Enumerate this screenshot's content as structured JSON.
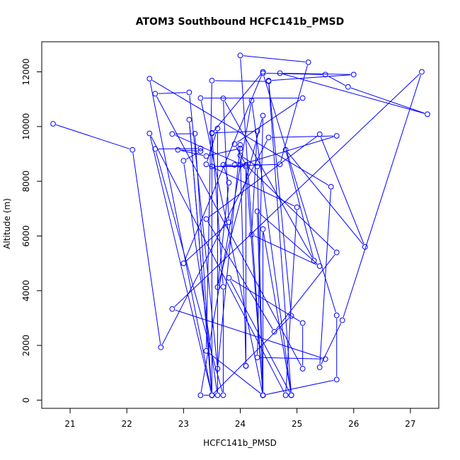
{
  "chart_data": {
    "type": "line",
    "title": "ATOM3 Southbound HCFC141b_PMSD",
    "xlabel": "HCFC141b_PMSD",
    "ylabel": "Altitude (m)",
    "xlim": [
      20.5,
      27.5
    ],
    "ylim": [
      -300,
      13100
    ],
    "xticks": [
      21,
      22,
      23,
      24,
      25,
      26,
      27
    ],
    "yticks": [
      0,
      2000,
      4000,
      6000,
      8000,
      10000,
      12000
    ],
    "grid": false,
    "legend": "none",
    "series": [
      {
        "values": [
          [
            20.7,
            10100
          ],
          [
            22.1,
            9150
          ],
          [
            22.6,
            1930
          ],
          [
            24.5,
            9600
          ],
          [
            25.7,
            9660
          ],
          [
            24.0,
            8600
          ],
          [
            23.9,
            8600
          ],
          [
            23.7,
            8600
          ],
          [
            23.8,
            7950
          ],
          [
            23.6,
            4130
          ],
          [
            24.4,
            10400
          ],
          [
            24.3,
            1560
          ],
          [
            25.5,
            1500
          ],
          [
            22.8,
            3330
          ],
          [
            27.2,
            12000
          ],
          [
            25.8,
            2920
          ],
          [
            25.4,
            1200
          ],
          [
            25.6,
            7800
          ],
          [
            22.4,
            11750
          ],
          [
            23.5,
            180
          ],
          [
            23.1,
            10250
          ],
          [
            23.5,
            180
          ],
          [
            23.3,
            180
          ],
          [
            24.2,
            10950
          ],
          [
            24.9,
            180
          ],
          [
            24.4,
            6250
          ],
          [
            24.4,
            180
          ],
          [
            24.3,
            6900
          ],
          [
            25.4,
            4900
          ],
          [
            24.2,
            6050
          ],
          [
            24.3,
            9830
          ],
          [
            23.5,
            9770
          ],
          [
            23.5,
            180
          ],
          [
            24.9,
            3080
          ],
          [
            24.5,
            11680
          ],
          [
            26.0,
            11900
          ],
          [
            24.7,
            11950
          ],
          [
            27.3,
            10450
          ],
          [
            25.9,
            11450
          ],
          [
            25.5,
            11900
          ],
          [
            24.4,
            11950
          ],
          [
            25.7,
            3100
          ],
          [
            25.7,
            750
          ],
          [
            24.4,
            180
          ],
          [
            23.4,
            1800
          ],
          [
            23.5,
            11680
          ],
          [
            24.5,
            11650
          ],
          [
            24.9,
            180
          ],
          [
            23.8,
            4470
          ],
          [
            25.1,
            2820
          ],
          [
            25.1,
            1150
          ],
          [
            22.5,
            11200
          ],
          [
            23.1,
            11250
          ],
          [
            23.6,
            1150
          ],
          [
            24.0,
            9330
          ],
          [
            24.0,
            9200
          ],
          [
            23.4,
            8920
          ],
          [
            22.9,
            9150
          ],
          [
            23.3,
            9100
          ],
          [
            23.0,
            8750
          ],
          [
            23.6,
            180
          ],
          [
            23.6,
            9930
          ],
          [
            23.4,
            8620
          ],
          [
            25.0,
            7050
          ],
          [
            24.8,
            180
          ],
          [
            22.4,
            9750
          ],
          [
            23.5,
            180
          ],
          [
            23.2,
            9740
          ],
          [
            22.8,
            9730
          ],
          [
            24.1,
            8540
          ],
          [
            24.1,
            1250
          ],
          [
            24.1,
            1250
          ],
          [
            24.0,
            8950
          ],
          [
            24.3,
            8540
          ],
          [
            24.4,
            180
          ],
          [
            24.0,
            12600
          ],
          [
            25.2,
            12350
          ],
          [
            24.7,
            8620
          ],
          [
            23.5,
            8540
          ],
          [
            24.1,
            8540
          ],
          [
            24.4,
            180
          ],
          [
            23.3,
            11040
          ],
          [
            25.1,
            11040
          ],
          [
            23.9,
            9360
          ],
          [
            24.1,
            8600
          ],
          [
            25.7,
            5400
          ],
          [
            24.6,
            2500
          ],
          [
            23.4,
            6620
          ],
          [
            25.4,
            9720
          ],
          [
            26.2,
            5600
          ],
          [
            24.8,
            9150
          ],
          [
            25.3,
            5100
          ],
          [
            23.7,
            11030
          ],
          [
            23.8,
            6500
          ],
          [
            23.0,
            5000
          ],
          [
            24.4,
            12000
          ],
          [
            23.5,
            9750
          ],
          [
            23.7,
            4140
          ],
          [
            23.7,
            180
          ],
          [
            22.5,
            9180
          ],
          [
            23.3,
            9200
          ]
        ]
      }
    ],
    "colors": {
      "series": "#0000ff",
      "axis": "#000000",
      "background": "#ffffff"
    }
  }
}
